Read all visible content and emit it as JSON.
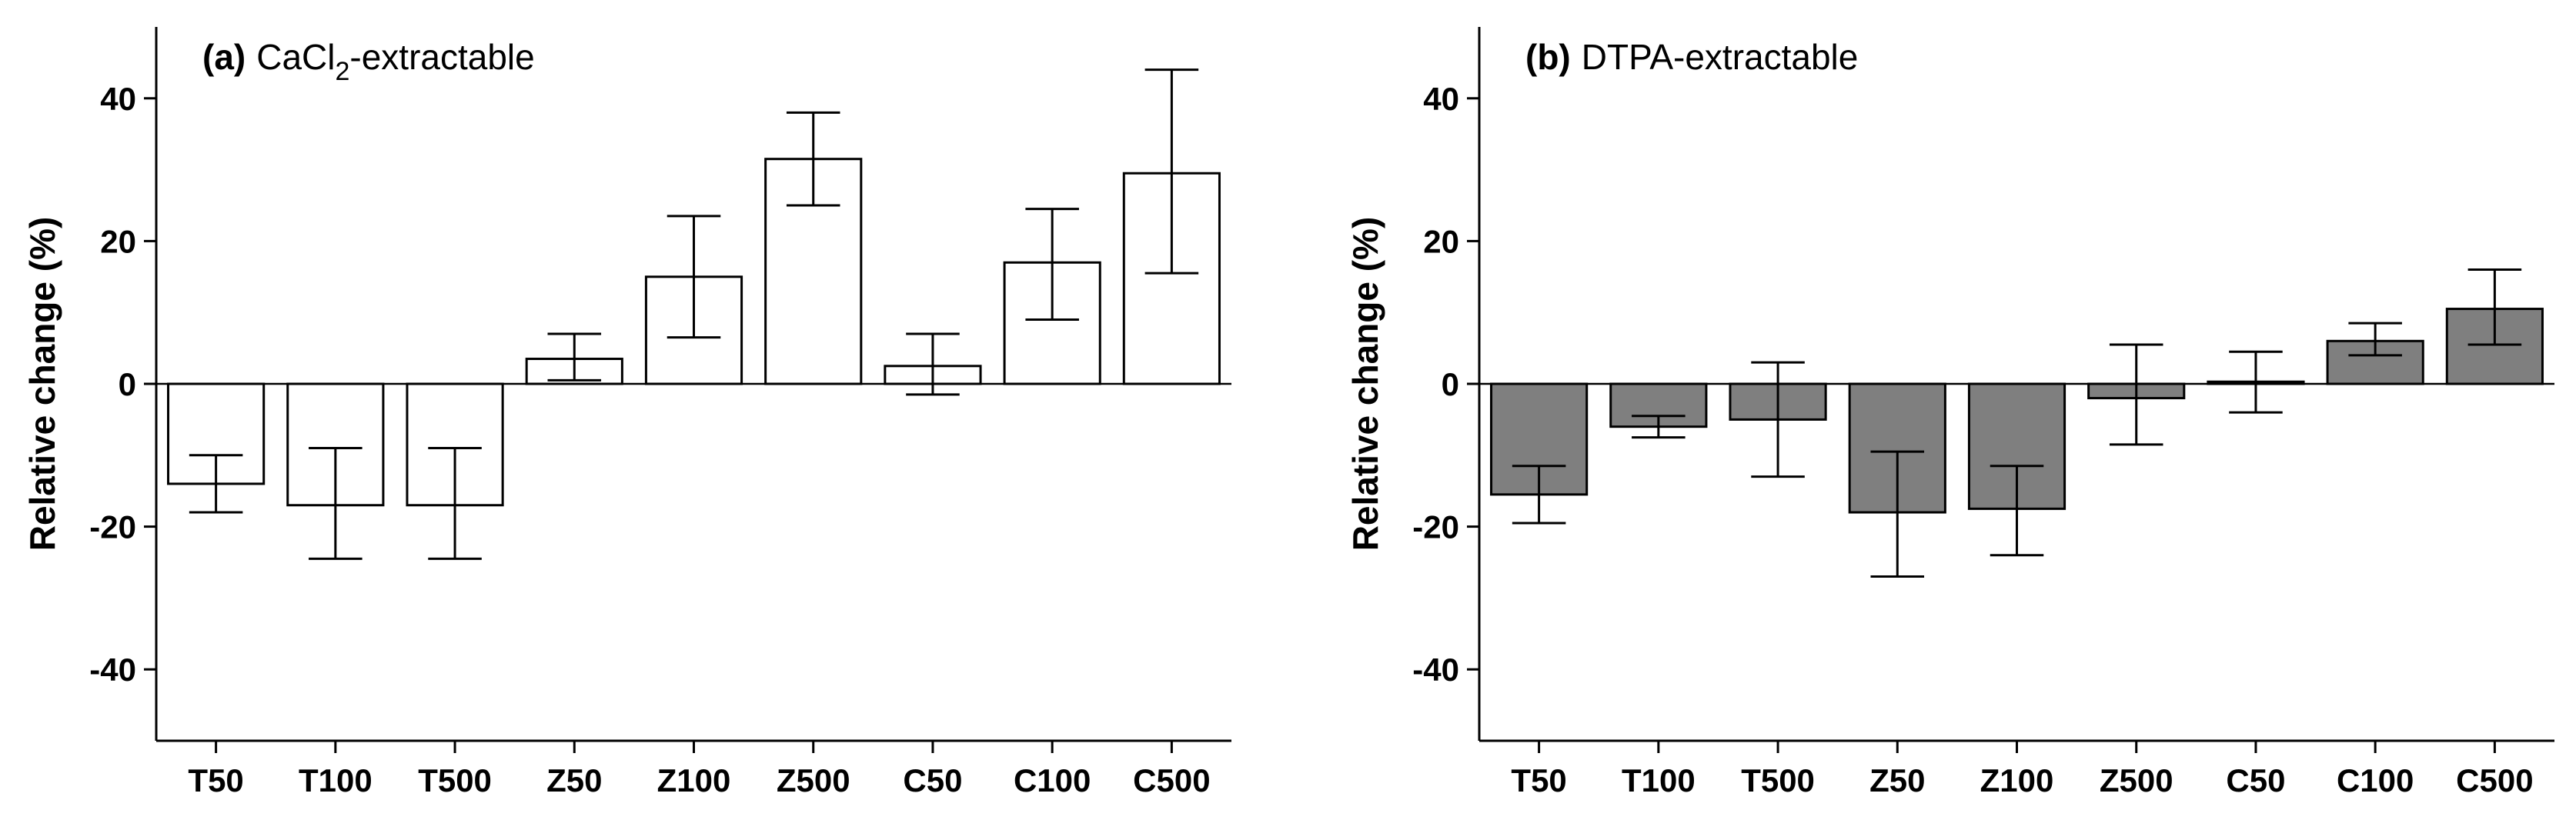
{
  "chart_data": [
    {
      "type": "bar",
      "panel_label": "(a)",
      "title_prefix": "CaCl",
      "title_subscript": "2",
      "title_suffix": "-extractable",
      "ylabel": "Relative change (%)",
      "xlabel": "",
      "ylim": [
        -50,
        50
      ],
      "yticks": [
        -40,
        -20,
        0,
        20,
        40
      ],
      "categories": [
        "T50",
        "T100",
        "T500",
        "Z50",
        "Z100",
        "Z500",
        "C50",
        "C100",
        "C500"
      ],
      "values": [
        -14,
        -17,
        -17,
        3.5,
        15,
        31.5,
        2.5,
        17,
        29.5
      ],
      "error_low": [
        -18,
        -24.5,
        -24.5,
        0.5,
        6.5,
        25,
        -1.5,
        9,
        15.5
      ],
      "error_high": [
        -10,
        -9,
        -9,
        7,
        23.5,
        38,
        7,
        24.5,
        44
      ],
      "bar_color": "#ffffff",
      "edge_color": "#000000"
    },
    {
      "type": "bar",
      "panel_label": "(b)",
      "title_prefix": "DTPA-extractable",
      "title_subscript": "",
      "title_suffix": "",
      "ylabel": "Relative change (%)",
      "xlabel": "",
      "ylim": [
        -50,
        50
      ],
      "yticks": [
        -40,
        -20,
        0,
        20,
        40
      ],
      "categories": [
        "T50",
        "T100",
        "T500",
        "Z50",
        "Z100",
        "Z500",
        "C50",
        "C100",
        "C500"
      ],
      "values": [
        -15.5,
        -6,
        -5,
        -18,
        -17.5,
        -2,
        0.3,
        6,
        10.5
      ],
      "error_low": [
        -19.5,
        -7.5,
        -13,
        -27,
        -24,
        -8.5,
        -4,
        4,
        5.5
      ],
      "error_high": [
        -11.5,
        -4.5,
        3,
        -9.5,
        -11.5,
        5.5,
        4.5,
        8.5,
        16
      ],
      "bar_color": "#7f7f7f",
      "edge_color": "#000000"
    }
  ]
}
